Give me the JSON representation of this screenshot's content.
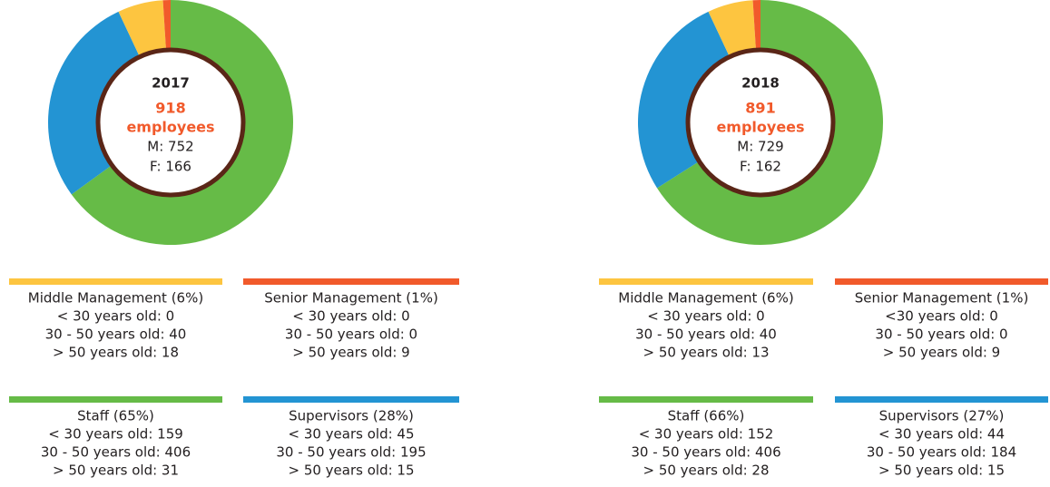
{
  "chart_data": [
    {
      "type": "pie",
      "donut": true,
      "year": "2017",
      "total": 918,
      "total_label": "employees",
      "male": "M: 752",
      "female": "F: 166",
      "categories": [
        "Staff (65%)",
        "Supervisors (28%)",
        "Middle Management (6%)",
        "Senior Management (1%)"
      ],
      "values": [
        65,
        28,
        6,
        1
      ],
      "colors": [
        "#66bb47",
        "#2394d3",
        "#fdc540",
        "#f15a2b"
      ],
      "details": [
        [
          "< 30 years old: 159",
          "30 - 50 years old: 406",
          "> 50 years old: 31"
        ],
        [
          "< 30 years old: 45",
          "30 - 50 years old: 195",
          "> 50 years old: 15"
        ],
        [
          "< 30 years old: 0",
          "30 - 50 years old: 40",
          "> 50 years old: 18"
        ],
        [
          "< 30 years old: 0",
          "30 - 50 years old: 0",
          "> 50 years old: 9"
        ]
      ]
    },
    {
      "type": "pie",
      "donut": true,
      "year": "2018",
      "total": 891,
      "total_label": "employees",
      "male": "M: 729",
      "female": "F: 162",
      "categories": [
        "Staff (66%)",
        "Supervisors (27%)",
        "Middle Management (6%)",
        "Senior Management (1%)"
      ],
      "values": [
        66,
        27,
        6,
        1
      ],
      "colors": [
        "#66bb47",
        "#2394d3",
        "#fdc540",
        "#f15a2b"
      ],
      "details": [
        [
          "< 30 years old: 152",
          "30 - 50 years old: 406",
          "> 50 years old: 28"
        ],
        [
          "< 30 years old: 44",
          "30 - 50 years old: 184",
          "> 50 years old: 15"
        ],
        [
          "< 30 years old: 0",
          "30 - 50 years old: 40",
          "> 50 years old: 13"
        ],
        [
          "<30 years old: 0",
          "30 - 50 years old: 0",
          "> 50 years old: 9"
        ]
      ]
    }
  ]
}
